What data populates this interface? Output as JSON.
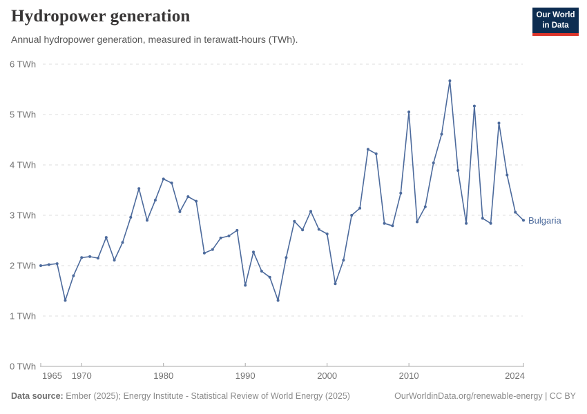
{
  "header": {
    "title": "Hydropower generation",
    "subtitle": "Annual hydropower generation, measured in terawatt-hours (TWh)."
  },
  "logo": {
    "line1": "Our World",
    "line2": "in Data",
    "bg_color": "#0d2d51",
    "accent_color": "#dc352b"
  },
  "footer": {
    "source_label": "Data source:",
    "source_text": "Ember (2025); Energy Institute - Statistical Review of World Energy (2025)",
    "right_text": "OurWorldinData.org/renewable-energy | CC BY"
  },
  "chart_data": {
    "type": "line",
    "title": "Hydropower generation",
    "ylabel": "",
    "xlabel": "",
    "unit": "TWh",
    "ytick_suffix": " TWh",
    "ylim": [
      0,
      6
    ],
    "yticks": [
      0,
      1,
      2,
      3,
      4,
      5,
      6
    ],
    "xlim": [
      1965,
      2024
    ],
    "xticks": [
      1965,
      1970,
      1980,
      1990,
      2000,
      2010,
      2024
    ],
    "grid": "horizontal-dashed",
    "legend_position": "end-of-line-label",
    "colors": {
      "line": "#4c6a9c",
      "grid": "#dcdcdc",
      "axis": "#a8a8a8",
      "tick_label": "#737373"
    },
    "series": [
      {
        "name": "Bulgaria",
        "color": "#4c6a9c",
        "x": [
          1965,
          1966,
          1967,
          1968,
          1969,
          1970,
          1971,
          1972,
          1973,
          1974,
          1975,
          1976,
          1977,
          1978,
          1979,
          1980,
          1981,
          1982,
          1983,
          1984,
          1985,
          1986,
          1987,
          1988,
          1989,
          1990,
          1991,
          1992,
          1993,
          1994,
          1995,
          1996,
          1997,
          1998,
          1999,
          2000,
          2001,
          2002,
          2003,
          2004,
          2005,
          2006,
          2007,
          2008,
          2009,
          2010,
          2011,
          2012,
          2013,
          2014,
          2015,
          2016,
          2017,
          2018,
          2019,
          2020,
          2021,
          2022,
          2023,
          2024
        ],
        "values": [
          2.0,
          2.02,
          2.04,
          1.31,
          1.8,
          2.16,
          2.18,
          2.15,
          2.56,
          2.11,
          2.46,
          2.96,
          3.53,
          2.9,
          3.3,
          3.72,
          3.64,
          3.07,
          3.37,
          3.28,
          2.25,
          2.32,
          2.55,
          2.59,
          2.7,
          1.61,
          2.27,
          1.89,
          1.77,
          1.31,
          2.16,
          2.88,
          2.71,
          3.08,
          2.72,
          2.63,
          1.64,
          2.11,
          3.0,
          3.14,
          4.31,
          4.22,
          2.84,
          2.79,
          3.44,
          5.05,
          2.87,
          3.17,
          4.04,
          4.61,
          5.67,
          3.89,
          2.84,
          5.17,
          2.94,
          2.84,
          4.83,
          3.8,
          3.06,
          2.9
        ]
      }
    ]
  }
}
